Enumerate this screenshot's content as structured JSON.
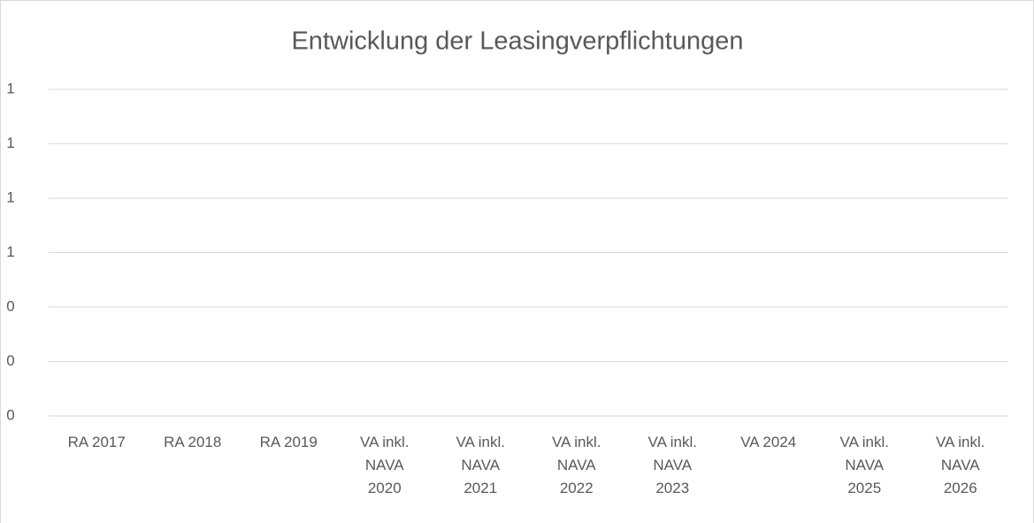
{
  "chart_data": {
    "type": "bar",
    "title": "Entwicklung der Leasingverpflichtungen",
    "categories": [
      "RA 2017",
      "RA 2018",
      "RA 2019",
      "VA inkl. NAVA 2020",
      "VA inkl. NAVA 2021",
      "VA inkl. NAVA 2022",
      "VA inkl. NAVA 2023",
      "VA 2024",
      "VA inkl. NAVA 2025",
      "VA inkl. NAVA 2026"
    ],
    "values": [
      0,
      0,
      0,
      0,
      0,
      0,
      0,
      0,
      0,
      0
    ],
    "color": "#4472c4",
    "ylim": [
      0,
      1.2
    ],
    "yticks": [
      0,
      {
        "value": 0.2,
        "label": "0"
      },
      {
        "value": 0.4,
        "label": "0"
      },
      {
        "value": 0.6,
        "label": "1"
      },
      {
        "value": 0.8,
        "label": "1"
      },
      {
        "value": 1,
        "label": "1"
      },
      {
        "value": 1.2,
        "label": "1"
      }
    ],
    "grid": true
  }
}
